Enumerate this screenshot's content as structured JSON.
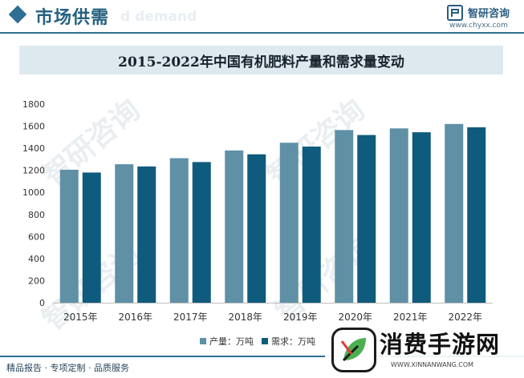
{
  "header": {
    "section_title": "市场供需",
    "ghost_text": "d demand",
    "brand_name": "智研咨询",
    "brand_url": "www.chyxx.com"
  },
  "colors": {
    "production": "#5f90a6",
    "demand": "#0f5b7d",
    "accent": "#2f6f94"
  },
  "watermark_text": "智研咨询",
  "chart_data": {
    "type": "bar",
    "title": "2015-2022年中国有机肥料产量和需求量变动",
    "categories": [
      "2015年",
      "2016年",
      "2017年",
      "2018年",
      "2019年",
      "2020年",
      "2021年",
      "2022年"
    ],
    "series": [
      {
        "name": "产量：万吨",
        "values": [
          1205,
          1255,
          1310,
          1380,
          1450,
          1565,
          1580,
          1620
        ]
      },
      {
        "name": "需求：万吨",
        "values": [
          1180,
          1235,
          1275,
          1345,
          1415,
          1520,
          1545,
          1590
        ]
      }
    ],
    "yticks": [
      0,
      200,
      400,
      600,
      800,
      1000,
      1200,
      1400,
      1600,
      1800
    ],
    "ylim": [
      0,
      1800
    ],
    "xlabel": "",
    "ylabel": "",
    "grid": false,
    "legend_position": "bottom-center"
  },
  "footer": {
    "text": "精品报告 · 专项定制 · 品质服务"
  },
  "overlay_ad": {
    "name": "消费手游网",
    "url": "WWW.XINNANWANG.COM"
  }
}
